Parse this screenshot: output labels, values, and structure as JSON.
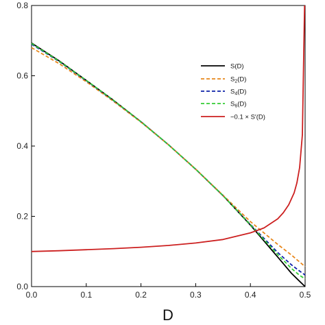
{
  "chart_data": {
    "type": "line",
    "title": "",
    "xlabel": "D",
    "ylabel": "",
    "xlim": [
      0,
      0.5
    ],
    "ylim": [
      0,
      0.8
    ],
    "xticks": [
      "0.0",
      "0.1",
      "0.2",
      "0.3",
      "0.4",
      "0.5"
    ],
    "yticks": [
      "0.0",
      "0.2",
      "0.4",
      "0.6",
      "0.8"
    ],
    "legend_position": "upper-right",
    "series": [
      {
        "name": "S(D)",
        "color": "#000000",
        "dash": "solid",
        "x": [
          0,
          0.05,
          0.1,
          0.15,
          0.2,
          0.25,
          0.3,
          0.35,
          0.4,
          0.45,
          0.475,
          0.49,
          0.5
        ],
        "y": [
          0.693,
          0.643,
          0.587,
          0.53,
          0.469,
          0.404,
          0.334,
          0.259,
          0.175,
          0.084,
          0.038,
          0.015,
          0.0
        ]
      },
      {
        "name": "S_2(D)",
        "color": "#e8861a",
        "dash": "dashed",
        "x": [
          0,
          0.05,
          0.1,
          0.15,
          0.2,
          0.25,
          0.3,
          0.35,
          0.4,
          0.45,
          0.475,
          0.49,
          0.5
        ],
        "y": [
          0.68,
          0.635,
          0.583,
          0.527,
          0.468,
          0.404,
          0.334,
          0.26,
          0.185,
          0.12,
          0.09,
          0.07,
          0.057
        ]
      },
      {
        "name": "S_4(D)",
        "color": "#0a1ea8",
        "dash": "dashed",
        "x": [
          0,
          0.05,
          0.1,
          0.15,
          0.2,
          0.25,
          0.3,
          0.35,
          0.4,
          0.45,
          0.475,
          0.49,
          0.5
        ],
        "y": [
          0.69,
          0.641,
          0.586,
          0.529,
          0.469,
          0.404,
          0.334,
          0.259,
          0.177,
          0.097,
          0.062,
          0.044,
          0.033
        ]
      },
      {
        "name": "S_6(D)",
        "color": "#33cc33",
        "dash": "dashed",
        "x": [
          0,
          0.05,
          0.1,
          0.15,
          0.2,
          0.25,
          0.3,
          0.35,
          0.4,
          0.45,
          0.475,
          0.49,
          0.5
        ],
        "y": [
          0.692,
          0.642,
          0.587,
          0.53,
          0.469,
          0.404,
          0.334,
          0.259,
          0.176,
          0.091,
          0.052,
          0.032,
          0.022
        ]
      },
      {
        "name": "−0.1 × S′(D)",
        "color": "#cc1f1f",
        "dash": "solid",
        "x": [
          0,
          0.05,
          0.1,
          0.15,
          0.2,
          0.25,
          0.3,
          0.35,
          0.4,
          0.425,
          0.45,
          0.46,
          0.47,
          0.48,
          0.485,
          0.49,
          0.495,
          0.499
        ],
        "y": [
          0.1,
          0.102,
          0.105,
          0.108,
          0.112,
          0.117,
          0.124,
          0.134,
          0.153,
          0.167,
          0.193,
          0.21,
          0.233,
          0.267,
          0.295,
          0.339,
          0.432,
          0.8
        ]
      }
    ],
    "legend_labels": {
      "s": {
        "base": "S",
        "arg": "(D)"
      },
      "s2": {
        "base": "S",
        "sub": "2",
        "arg": "(D)"
      },
      "s4": {
        "base": "S",
        "sub": "4",
        "arg": "(D)"
      },
      "s6": {
        "base": "S",
        "sub": "6",
        "arg": "(D)"
      },
      "deriv": "−0.1 × S′(D)"
    }
  }
}
